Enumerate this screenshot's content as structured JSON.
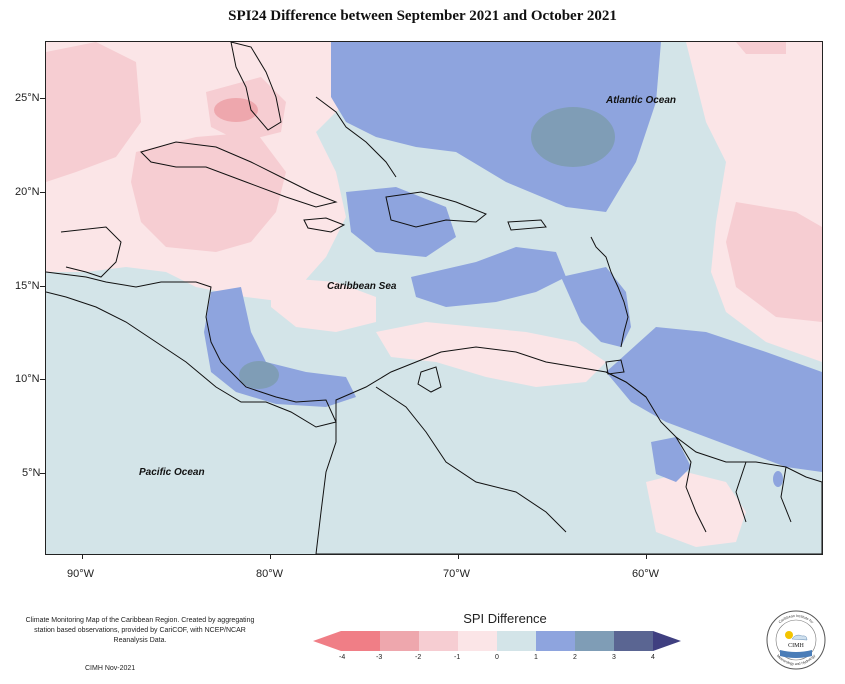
{
  "title": "SPI24 Difference between September 2021 and October 2021",
  "map": {
    "ocean_labels": [
      "Atlantic Ocean",
      "Caribbean Sea",
      "Pacific Ocean"
    ],
    "lat_ticks": [
      "25°N",
      "20°N",
      "15°N",
      "10°N",
      "5°N"
    ],
    "lon_ticks": [
      "90°W",
      "80°W",
      "70°W",
      "60°W"
    ],
    "colors": {
      "land_outline": "#111111",
      "neg4": "#f07e86",
      "neg3": "#eea7ad",
      "neg2": "#f6cdd2",
      "neg1": "#fbe5e7",
      "zero": "#d3e4e8",
      "pos1": "#8ea4de",
      "pos2": "#7f9db6",
      "pos3": "#5a6592"
    }
  },
  "footer": {
    "description": "Climate Monitoring Map of the Caribbean Region. Created by aggregating station based observations, provided by CariCOF, with NCEP/NCAR Reanalysis Data.",
    "credit": "CIMH Nov-2021"
  },
  "legend": {
    "title": "SPI Difference",
    "ticks": [
      "-4",
      "-3",
      "-2",
      "-1",
      "0",
      "1",
      "2",
      "3",
      "4"
    ],
    "colors": [
      "#f07e86",
      "#eea7ad",
      "#f6cdd2",
      "#fbe5e7",
      "#d3e4e8",
      "#8ea4de",
      "#7f9db6",
      "#5a6592"
    ]
  },
  "logo": {
    "name": "CIMH",
    "ring_text_top": "Caribbean Institute for",
    "ring_text_bottom": "Meteorology and Hydrology"
  }
}
